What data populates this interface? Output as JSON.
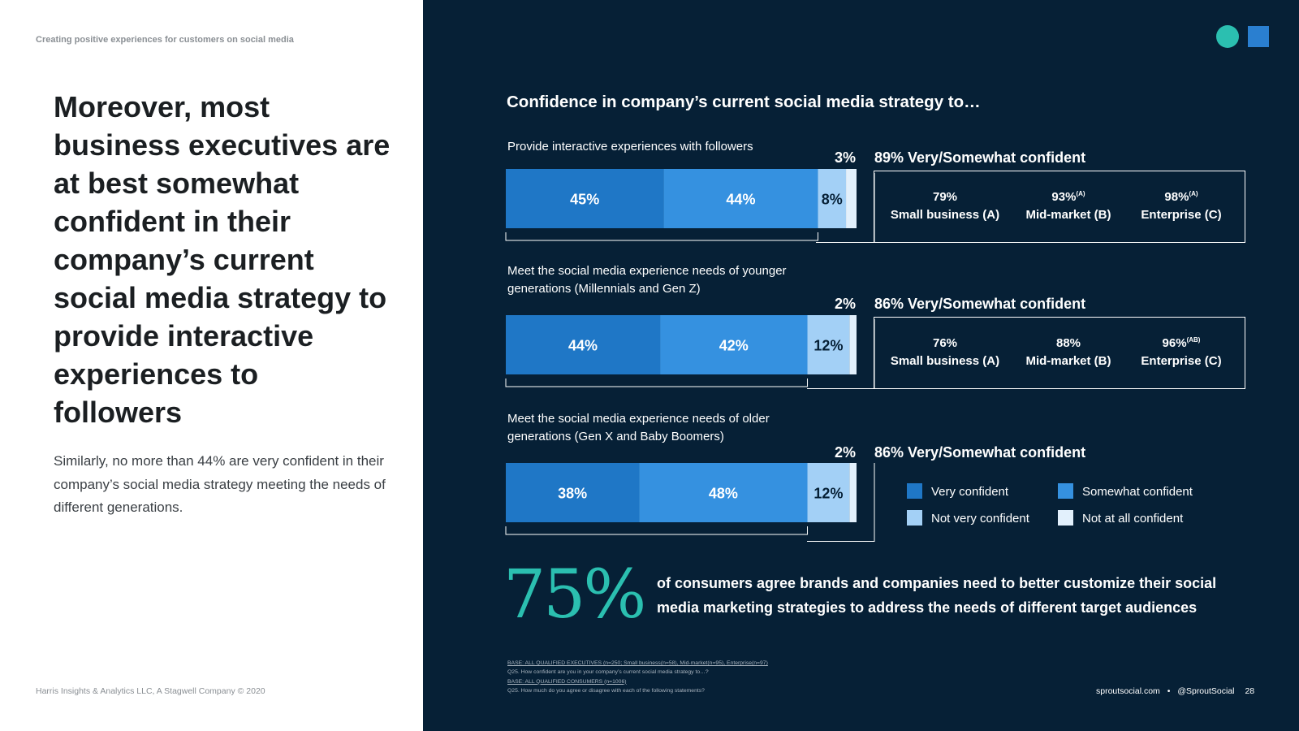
{
  "eyebrow": "Creating positive experiences for customers on social media",
  "headline": "Moreover, most business executives are at best somewhat confident in their company’s current social media strategy to provide interactive experiences to followers",
  "body": "Similarly, no more than 44% are very confident in their company’s social media strategy meeting the needs of different generations.",
  "copyright": "Harris Insights & Analytics LLC, A Stagwell Company © 2020",
  "chart_title": "Confidence in company’s current social media strategy to…",
  "colors": {
    "very": "#1f77c6",
    "somewhat": "#3591e0",
    "not_very": "#a3d0f6",
    "not_at_all": "#e2f0fc",
    "navy": "#062036",
    "teal": "#2bbfb0"
  },
  "chart_data": {
    "type": "bar",
    "orientation": "horizontal",
    "stacked": true,
    "title": "Confidence in company’s current social media strategy to…",
    "categories": [
      [
        "Provide interactive experiences with followers"
      ],
      [
        "Meet the social media experience needs of younger",
        "generations (Millennials and Gen Z)"
      ],
      [
        "Meet the social media experience needs of older",
        "generations (Gen X and Baby Boomers)"
      ]
    ],
    "series": [
      {
        "name": "Very confident",
        "values": [
          45,
          44,
          38
        ],
        "labels": [
          "45%",
          "44%",
          "38%"
        ]
      },
      {
        "name": "Somewhat confident",
        "values": [
          44,
          42,
          48
        ],
        "labels": [
          "44%",
          "42%",
          "48%"
        ]
      },
      {
        "name": "Not very confident",
        "values": [
          8,
          12,
          12
        ],
        "labels": [
          "8%",
          "12%",
          "12%"
        ]
      },
      {
        "name": "Not at all confident",
        "values": [
          3,
          2,
          2
        ],
        "labels": [
          "3%",
          "2%",
          "2%"
        ]
      }
    ],
    "totals": [
      "89% Very/Somewhat confident",
      "86% Very/Somewhat confident",
      "86% Very/Somewhat confident"
    ],
    "segments": [
      [
        {
          "value": "79%",
          "sup": "",
          "label": "Small business (A)"
        },
        {
          "value": "93%",
          "sup": "(A)",
          "label": "Mid-market (B)"
        },
        {
          "value": "98%",
          "sup": "(A)",
          "label": "Enterprise (C)"
        }
      ],
      [
        {
          "value": "76%",
          "sup": "",
          "label": "Small business (A)"
        },
        {
          "value": "88%",
          "sup": "",
          "label": "Mid-market (B)"
        },
        {
          "value": "96%",
          "sup": "(AB)",
          "label": "Enterprise (C)"
        }
      ]
    ],
    "legend": [
      "Very confident",
      "Somewhat confident",
      "Not very confident",
      "Not at all confident"
    ],
    "xlim": [
      0,
      100
    ]
  },
  "consumer_stat": {
    "value": "75%",
    "text": "of consumers agree brands and companies need to better customize their social media marketing strategies to address the needs of different target audiences"
  },
  "footnotes": [
    "BASE: ALL QUALIFIED EXECUTIVES (n=250; Small business(n=58), Mid-market(n=95), Enterprise(n=97)",
    "Q25. How confident are you in your company’s current social media strategy to…?",
    "BASE: ALL QUALIFIED CONSUMERS (n=1006)",
    "Q25. How much do you agree or disagree with each of the following statements?"
  ],
  "footer": {
    "site": "sproutsocial.com",
    "separator": "•",
    "handle": "@SproutSocial",
    "page_number": "28"
  }
}
